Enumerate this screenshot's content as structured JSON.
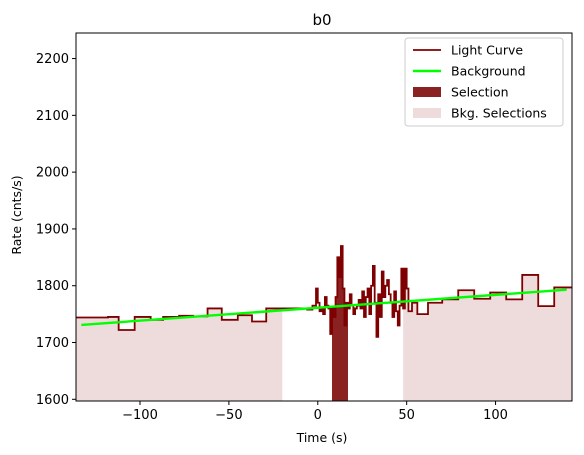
{
  "chart_data": {
    "type": "line",
    "title": "b0",
    "xlabel": "Time (s)",
    "ylabel": "Rate (cnts/s)",
    "xlim": [
      -136,
      143
    ],
    "ylim": [
      1597,
      2245
    ],
    "xticks": [
      -100,
      -50,
      0,
      50,
      100
    ],
    "yticks": [
      1600,
      1700,
      1800,
      1900,
      2000,
      2100,
      2200
    ],
    "grid": false,
    "legend_position": "upper right",
    "legend": [
      {
        "label": "Light Curve",
        "kind": "line",
        "color": "#7f0000"
      },
      {
        "label": "Background",
        "kind": "line",
        "color": "#00ff00"
      },
      {
        "label": "Selection",
        "kind": "patch",
        "color": "#8b2222"
      },
      {
        "label": "Bkg. Selections",
        "kind": "patch",
        "color": "#eedcdc"
      }
    ],
    "background": {
      "name": "Background",
      "color": "#00ff00",
      "x": [
        -133,
        140
      ],
      "y": [
        1731,
        1793
      ]
    },
    "bkg_selections": [
      [
        -136,
        -20
      ],
      [
        48,
        143
      ]
    ],
    "selection": [
      8,
      17
    ],
    "light_curve": {
      "name": "Light Curve",
      "color": "#7f0000",
      "edges": [
        -136,
        -127,
        -118,
        -112,
        -103,
        -94,
        -87,
        -78,
        -70,
        -62,
        -54,
        -45,
        -37,
        -29,
        -21,
        -12,
        -6,
        -3,
        -1,
        0,
        1,
        2,
        3,
        4,
        5,
        6,
        7,
        8,
        9,
        10,
        11,
        12,
        13,
        14,
        15,
        16,
        17,
        18,
        19,
        20,
        21,
        22,
        23,
        24,
        25,
        26,
        27,
        28,
        29,
        30,
        31,
        32,
        33,
        34,
        35,
        36,
        37,
        38,
        39,
        40,
        41,
        42,
        43,
        44,
        45,
        46,
        47,
        48,
        49,
        50,
        51,
        53,
        56,
        62,
        70,
        79,
        88,
        97,
        106,
        115,
        124,
        133,
        143
      ],
      "rates": [
        1744,
        1744,
        1745,
        1722,
        1745,
        1740,
        1745,
        1747,
        1746,
        1760,
        1740,
        1748,
        1737,
        1760,
        1760,
        1760,
        1758,
        1765,
        1795,
        1770,
        1755,
        1760,
        1750,
        1780,
        1765,
        1760,
        1715,
        1760,
        1745,
        1780,
        1850,
        1815,
        1870,
        1795,
        1730,
        1770,
        1760,
        1785,
        1765,
        1750,
        1760,
        1765,
        1775,
        1760,
        1790,
        1745,
        1780,
        1795,
        1750,
        1800,
        1835,
        1770,
        1710,
        1785,
        1745,
        1825,
        1780,
        1800,
        1810,
        1785,
        1770,
        1745,
        1790,
        1755,
        1730,
        1765,
        1830,
        1760,
        1830,
        1795,
        1755,
        1770,
        1750,
        1770,
        1776,
        1792,
        1777,
        1788,
        1776,
        1819,
        1764,
        1797
      ]
    }
  }
}
